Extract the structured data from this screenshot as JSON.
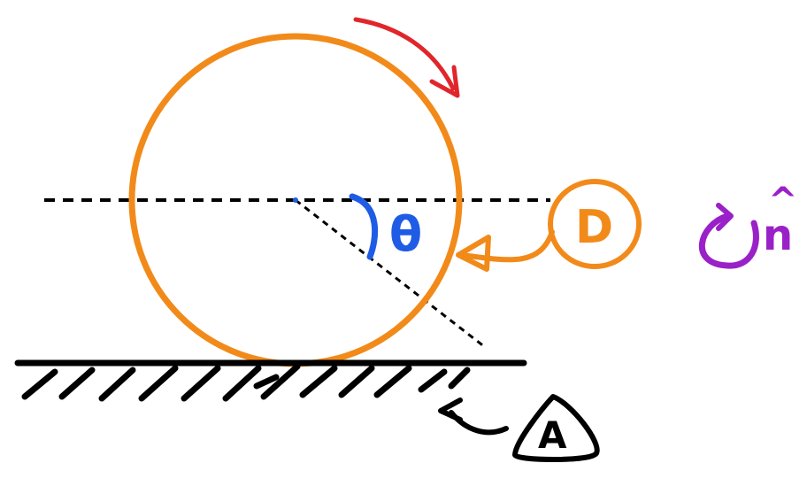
{
  "labels": {
    "angle": "θ",
    "wheel_tag": "D",
    "ground_tag": "A",
    "normal_vector": "n",
    "normal_hat": "^"
  },
  "colors": {
    "wheel": "#f28a1a",
    "rotation_arrow": "#e0262b",
    "angle": "#1f5ce6",
    "normal_marker": "#9a20c8",
    "ground": "#000000",
    "guide_lines": "#000000"
  },
  "icons": {
    "rotation": "clockwise-arrow-icon",
    "normal_rotation": "counterclockwise-arrow-icon"
  }
}
